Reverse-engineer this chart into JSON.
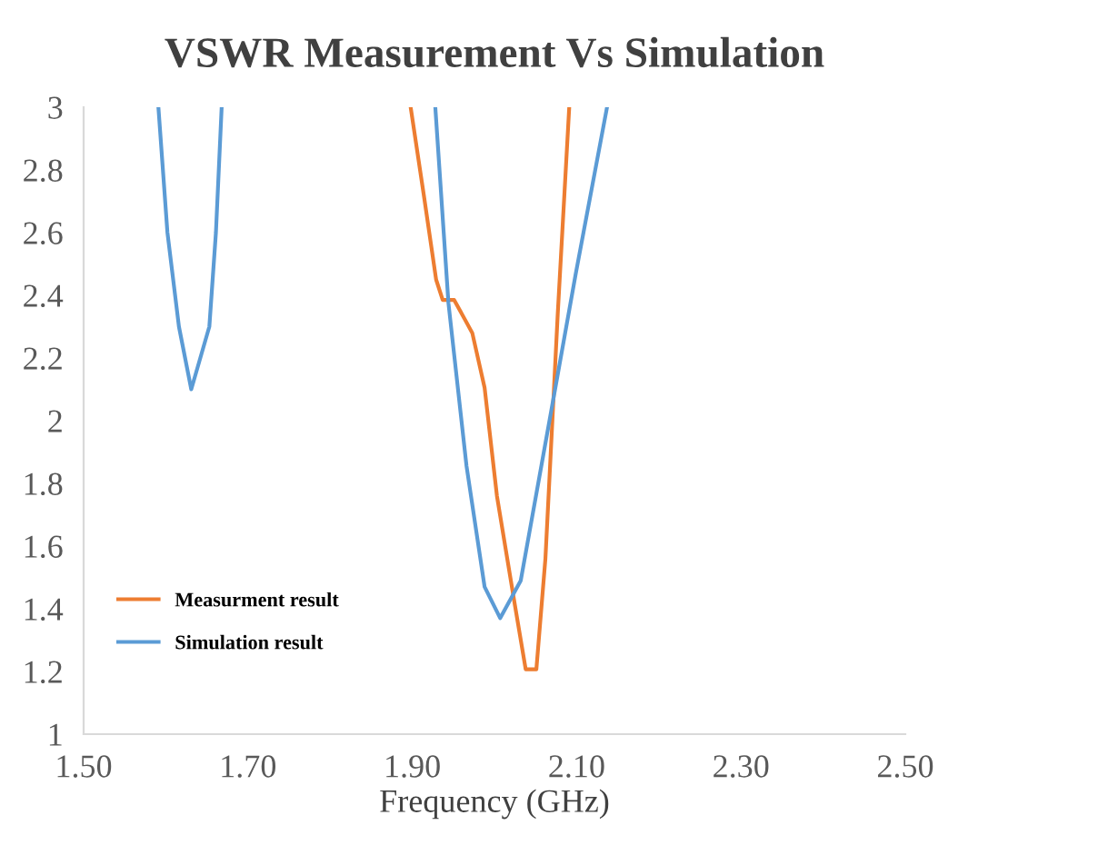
{
  "chart_data": {
    "type": "line",
    "title": "VSWR Measurement Vs Simulation",
    "xlabel": "Frequency (GHz)",
    "xlim": [
      1.5,
      2.5
    ],
    "xticks": [
      {
        "value": 1.5,
        "label": "1.50"
      },
      {
        "value": 1.7,
        "label": "1.70"
      },
      {
        "value": 1.9,
        "label": "1.90"
      },
      {
        "value": 2.1,
        "label": "2.10"
      },
      {
        "value": 2.3,
        "label": "2.30"
      },
      {
        "value": 2.5,
        "label": "2.50"
      }
    ],
    "ylim": [
      1,
      3
    ],
    "yticks": [
      1,
      1.2,
      1.4,
      1.6,
      1.8,
      2,
      2.2,
      2.4,
      2.6,
      2.8,
      3
    ],
    "grid": false,
    "legend": "bottom left",
    "marker": "none",
    "line_style": "solid",
    "series": [
      {
        "name": "Measurment result",
        "color": "#ed7d31",
        "x": [
          1.898,
          1.914,
          1.929,
          1.937,
          1.951,
          1.973,
          1.988,
          2.003,
          2.025,
          2.038,
          2.051,
          2.062,
          2.077,
          2.091
        ],
        "values": [
          3,
          2.72,
          2.45,
          2.385,
          2.385,
          2.28,
          2.105,
          1.76,
          1.41,
          1.207,
          1.207,
          1.56,
          2.34,
          3
        ]
      },
      {
        "name": "Simulation result",
        "color": "#5b9bd5",
        "x": [
          1.591,
          1.602,
          1.616,
          1.631,
          1.653,
          1.661,
          1.668,
          1.8,
          1.928,
          1.944,
          1.966,
          1.988,
          2.007,
          2.032,
          2.069,
          2.099,
          2.137
        ],
        "values": [
          3,
          2.6,
          2.3,
          2.1,
          2.3,
          2.6,
          3,
          null,
          3,
          2.375,
          1.855,
          1.47,
          1.37,
          1.49,
          2.03,
          2.47,
          3
        ]
      }
    ]
  }
}
